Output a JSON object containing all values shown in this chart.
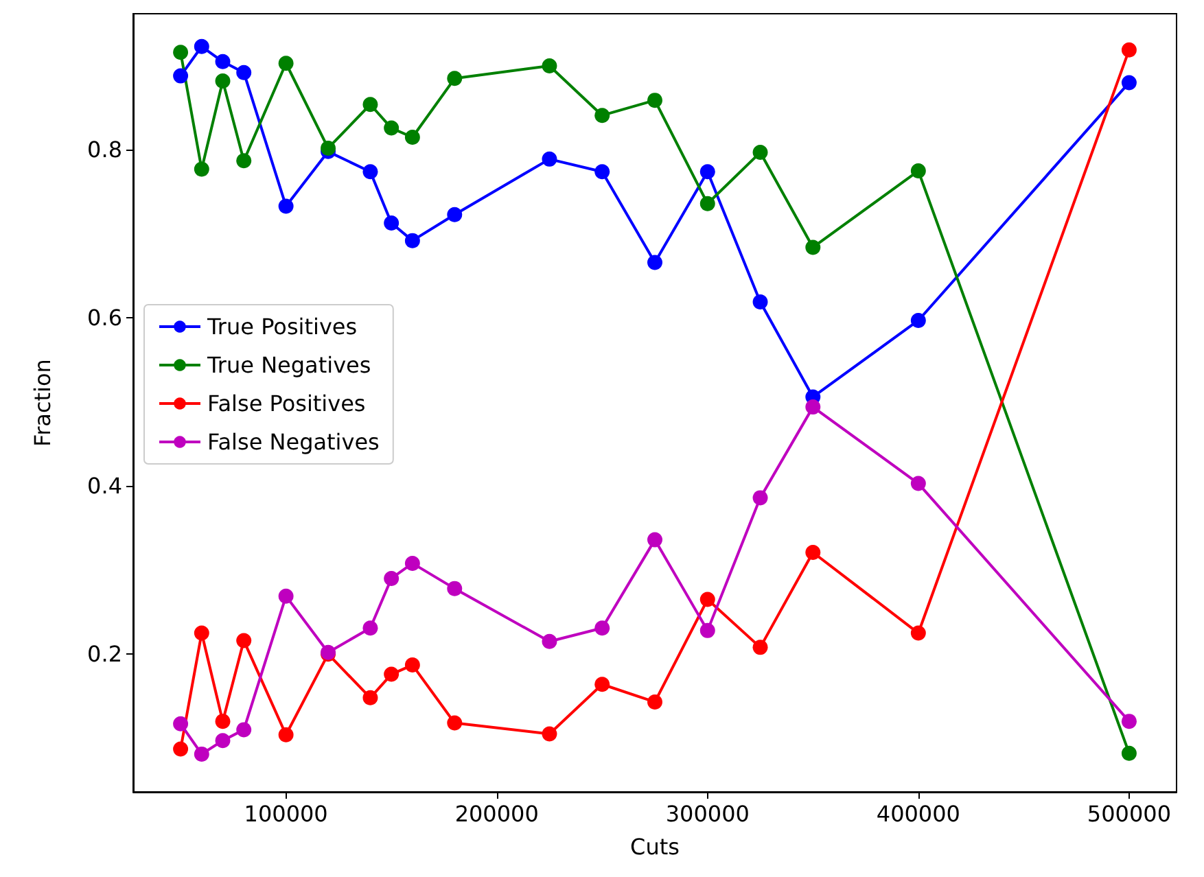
{
  "chart_data": {
    "type": "line",
    "xlabel": "Cuts",
    "ylabel": "Fraction",
    "x": [
      50000,
      60000,
      70000,
      80000,
      100000,
      120000,
      140000,
      150000,
      160000,
      180000,
      225000,
      250000,
      275000,
      300000,
      325000,
      350000,
      400000,
      500000
    ],
    "series": [
      {
        "name": "True Positives",
        "color": "#0000ff",
        "values": [
          0.888,
          0.923,
          0.905,
          0.892,
          0.733,
          0.798,
          0.774,
          0.713,
          0.692,
          0.723,
          0.789,
          0.774,
          0.666,
          0.774,
          0.619,
          0.506,
          0.597,
          0.88
        ]
      },
      {
        "name": "True Negatives",
        "color": "#008000",
        "values": [
          0.916,
          0.777,
          0.882,
          0.787,
          0.903,
          0.802,
          0.854,
          0.826,
          0.815,
          0.885,
          0.9,
          0.841,
          0.859,
          0.736,
          0.797,
          0.684,
          0.775,
          0.082
        ]
      },
      {
        "name": "False Positives",
        "color": "#ff0000",
        "values": [
          0.087,
          0.225,
          0.12,
          0.216,
          0.104,
          0.2,
          0.148,
          0.176,
          0.187,
          0.118,
          0.105,
          0.164,
          0.143,
          0.265,
          0.208,
          0.321,
          0.225,
          0.919
        ]
      },
      {
        "name": "False Negatives",
        "color": "#bf00bf",
        "values": [
          0.117,
          0.081,
          0.097,
          0.11,
          0.269,
          0.202,
          0.231,
          0.29,
          0.308,
          0.278,
          0.215,
          0.231,
          0.336,
          0.228,
          0.386,
          0.494,
          0.403,
          0.12
        ]
      }
    ],
    "xlim": [
      27500,
      522500
    ],
    "xticks": [
      100000,
      200000,
      300000,
      400000,
      500000
    ],
    "ylim": [
      0.036,
      0.962
    ],
    "yticks": [
      0.2,
      0.4,
      0.6,
      0.8
    ],
    "grid": false,
    "legend": "center left",
    "marker": "circle",
    "line_style": "solid"
  }
}
